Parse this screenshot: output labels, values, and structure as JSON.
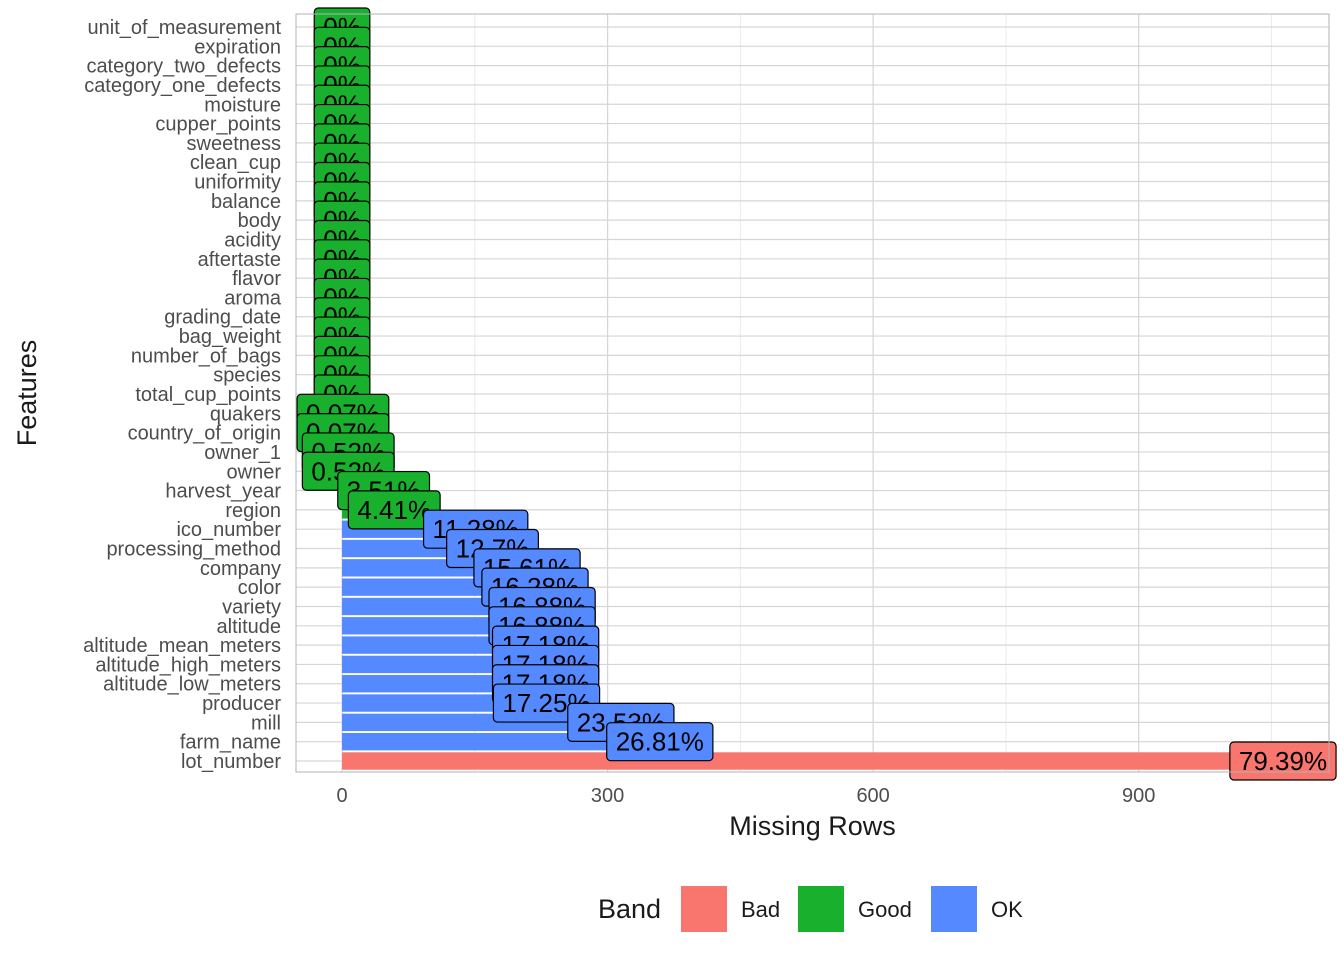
{
  "chart_data": {
    "type": "bar",
    "orientation": "horizontal",
    "xlabel": "Missing Rows",
    "ylabel": "Features",
    "xlim": [
      -52,
      1115
    ],
    "xticks": [
      0,
      300,
      600,
      900
    ],
    "grid": true,
    "legend": {
      "title": "Band",
      "position": "bottom",
      "items": [
        {
          "label": "Bad",
          "color": "#F8766D"
        },
        {
          "label": "Good",
          "color": "#19B02D"
        },
        {
          "label": "OK",
          "color": "#5489FF"
        }
      ]
    },
    "colors": {
      "Bad": "#F8766D",
      "Good": "#19B02D",
      "OK": "#5489FF"
    },
    "bars": [
      {
        "feature": "unit_of_measurement",
        "value": 0,
        "label": "0%",
        "band": "Good"
      },
      {
        "feature": "expiration",
        "value": 0,
        "label": "0%",
        "band": "Good"
      },
      {
        "feature": "category_two_defects",
        "value": 0,
        "label": "0%",
        "band": "Good"
      },
      {
        "feature": "category_one_defects",
        "value": 0,
        "label": "0%",
        "band": "Good"
      },
      {
        "feature": "moisture",
        "value": 0,
        "label": "0%",
        "band": "Good"
      },
      {
        "feature": "cupper_points",
        "value": 0,
        "label": "0%",
        "band": "Good"
      },
      {
        "feature": "sweetness",
        "value": 0,
        "label": "0%",
        "band": "Good"
      },
      {
        "feature": "clean_cup",
        "value": 0,
        "label": "0%",
        "band": "Good"
      },
      {
        "feature": "uniformity",
        "value": 0,
        "label": "0%",
        "band": "Good"
      },
      {
        "feature": "balance",
        "value": 0,
        "label": "0%",
        "band": "Good"
      },
      {
        "feature": "body",
        "value": 0,
        "label": "0%",
        "band": "Good"
      },
      {
        "feature": "acidity",
        "value": 0,
        "label": "0%",
        "band": "Good"
      },
      {
        "feature": "aftertaste",
        "value": 0,
        "label": "0%",
        "band": "Good"
      },
      {
        "feature": "flavor",
        "value": 0,
        "label": "0%",
        "band": "Good"
      },
      {
        "feature": "aroma",
        "value": 0,
        "label": "0%",
        "band": "Good"
      },
      {
        "feature": "grading_date",
        "value": 0,
        "label": "0%",
        "band": "Good"
      },
      {
        "feature": "bag_weight",
        "value": 0,
        "label": "0%",
        "band": "Good"
      },
      {
        "feature": "number_of_bags",
        "value": 0,
        "label": "0%",
        "band": "Good"
      },
      {
        "feature": "species",
        "value": 0,
        "label": "0%",
        "band": "Good"
      },
      {
        "feature": "total_cup_points",
        "value": 0,
        "label": "0%",
        "band": "Good"
      },
      {
        "feature": "quakers",
        "value": 1,
        "label": "0.07%",
        "band": "Good"
      },
      {
        "feature": "country_of_origin",
        "value": 1,
        "label": "0.07%",
        "band": "Good"
      },
      {
        "feature": "owner_1",
        "value": 7,
        "label": "0.52%",
        "band": "Good"
      },
      {
        "feature": "owner",
        "value": 7,
        "label": "0.52%",
        "band": "Good"
      },
      {
        "feature": "harvest_year",
        "value": 47,
        "label": "3.51%",
        "band": "Good"
      },
      {
        "feature": "region",
        "value": 59,
        "label": "4.41%",
        "band": "Good"
      },
      {
        "feature": "ico_number",
        "value": 151,
        "label": "11.28%",
        "band": "OK"
      },
      {
        "feature": "processing_method",
        "value": 170,
        "label": "12.7%",
        "band": "OK"
      },
      {
        "feature": "company",
        "value": 209,
        "label": "15.61%",
        "band": "OK"
      },
      {
        "feature": "color",
        "value": 218,
        "label": "16.28%",
        "band": "OK"
      },
      {
        "feature": "variety",
        "value": 226,
        "label": "16.88%",
        "band": "OK"
      },
      {
        "feature": "altitude",
        "value": 226,
        "label": "16.88%",
        "band": "OK"
      },
      {
        "feature": "altitude_mean_meters",
        "value": 230,
        "label": "17.18%",
        "band": "OK"
      },
      {
        "feature": "altitude_high_meters",
        "value": 230,
        "label": "17.18%",
        "band": "OK"
      },
      {
        "feature": "altitude_low_meters",
        "value": 230,
        "label": "17.18%",
        "band": "OK"
      },
      {
        "feature": "producer",
        "value": 231,
        "label": "17.25%",
        "band": "OK"
      },
      {
        "feature": "mill",
        "value": 315,
        "label": "23.53%",
        "band": "OK"
      },
      {
        "feature": "farm_name",
        "value": 359,
        "label": "26.81%",
        "band": "OK"
      },
      {
        "feature": "lot_number",
        "value": 1063,
        "label": "79.39%",
        "band": "Bad"
      }
    ]
  }
}
